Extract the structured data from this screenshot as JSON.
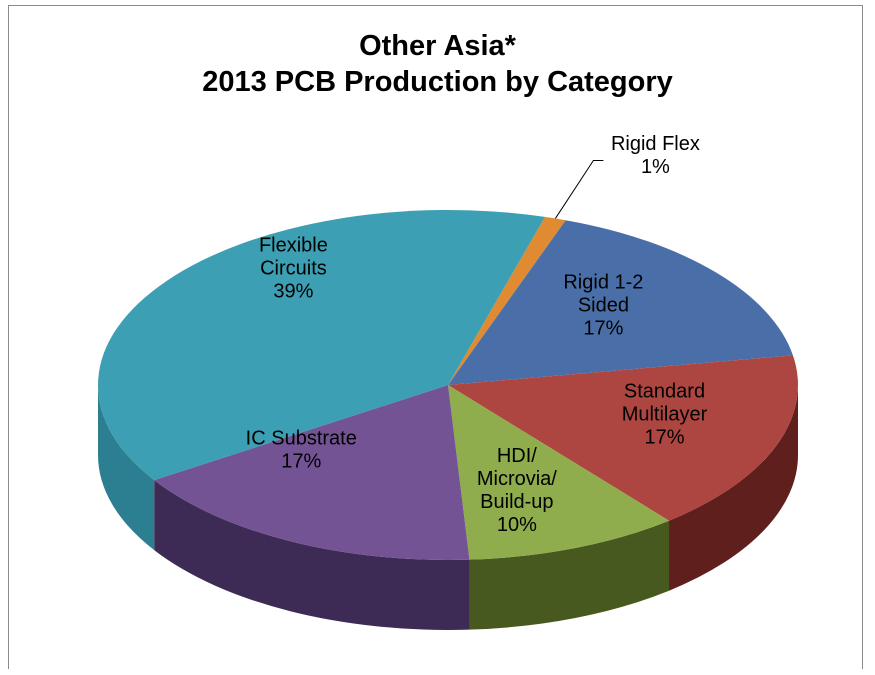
{
  "chart_data": {
    "type": "pie",
    "style": "3d",
    "title_lines": [
      "Other Asia*",
      "2013 PCB Production by Category"
    ],
    "slices": [
      {
        "name": "Rigid Flex",
        "label_lines": [
          "Rigid Flex"
        ],
        "value": 1,
        "value_label": "1%",
        "color": "#e08a32",
        "side_color": "#9c5a1c"
      },
      {
        "name": "Rigid 1-2 Sided",
        "label_lines": [
          "Rigid 1-2",
          "Sided"
        ],
        "value": 17,
        "value_label": "17%",
        "color": "#4a6fa8",
        "side_color": "#2e4670"
      },
      {
        "name": "Standard Multilayer",
        "label_lines": [
          "Standard",
          "Multilayer"
        ],
        "value": 17,
        "value_label": "17%",
        "color": "#ad4541",
        "side_color": "#5e1f1d"
      },
      {
        "name": "HDI/ Microvia/ Build-up",
        "label_lines": [
          "HDI/",
          "Microvia/",
          "Build-up"
        ],
        "value": 10,
        "value_label": "10%",
        "color": "#8fad4c",
        "side_color": "#48591f"
      },
      {
        "name": "IC Substrate",
        "label_lines": [
          "IC Substrate"
        ],
        "value": 17,
        "value_label": "17%",
        "color": "#735394",
        "side_color": "#3e2b55"
      },
      {
        "name": "Flexible Circuits",
        "label_lines": [
          "Flexible",
          "Circuits"
        ],
        "value": 39,
        "value_label": "39%",
        "color": "#3c9fb3",
        "side_color": "#2c7f90"
      }
    ]
  }
}
